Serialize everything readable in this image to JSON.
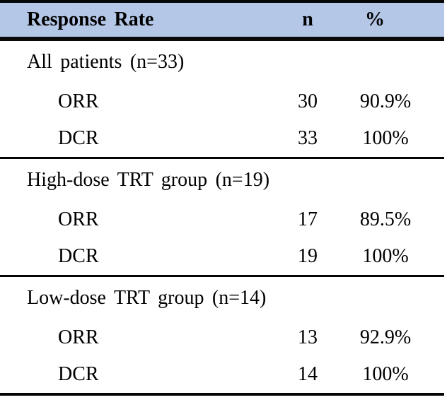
{
  "table": {
    "header": {
      "label": "Response Rate",
      "n": "n",
      "pct": "%"
    },
    "groups": [
      {
        "title": "All patients (n=33)",
        "rows": [
          {
            "label": "ORR",
            "n": "30",
            "pct": "90.9%"
          },
          {
            "label": "DCR",
            "n": "33",
            "pct": "100%"
          }
        ]
      },
      {
        "title": "High-dose TRT group (n=19)",
        "rows": [
          {
            "label": "ORR",
            "n": "17",
            "pct": "89.5%"
          },
          {
            "label": "DCR",
            "n": "19",
            "pct": "100%"
          }
        ]
      },
      {
        "title": "Low-dose TRT group (n=14)",
        "rows": [
          {
            "label": "ORR",
            "n": "13",
            "pct": "92.9%"
          },
          {
            "label": "DCR",
            "n": "14",
            "pct": "100%"
          }
        ]
      }
    ]
  },
  "colors": {
    "header_bg": "#b4c7e7",
    "rule": "#050505",
    "text": "#000000"
  }
}
